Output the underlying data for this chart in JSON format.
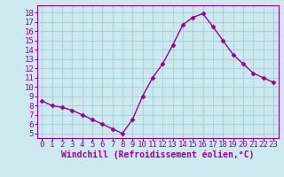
{
  "x": [
    0,
    1,
    2,
    3,
    4,
    5,
    6,
    7,
    8,
    9,
    10,
    11,
    12,
    13,
    14,
    15,
    16,
    17,
    18,
    19,
    20,
    21,
    22,
    23
  ],
  "y": [
    8.5,
    8.0,
    7.8,
    7.5,
    7.0,
    6.5,
    6.0,
    5.5,
    5.0,
    6.5,
    9.0,
    11.0,
    12.5,
    14.5,
    16.7,
    17.5,
    17.9,
    16.5,
    15.0,
    13.5,
    12.5,
    11.5,
    11.0,
    10.5
  ],
  "line_color": "#990099",
  "marker": "D",
  "marker_size": 2.5,
  "bg_color": "#cce9f0",
  "grid_color": "#aad4dd",
  "xlabel": "Windchill (Refroidissement éolien,°C)",
  "xlabel_color": "#990099",
  "tick_color": "#990099",
  "axis_color": "#990099",
  "ylim": [
    4.5,
    18.8
  ],
  "xlim": [
    -0.5,
    23.5
  ],
  "yticks": [
    5,
    6,
    7,
    8,
    9,
    10,
    11,
    12,
    13,
    14,
    15,
    16,
    17,
    18
  ],
  "xticks": [
    0,
    1,
    2,
    3,
    4,
    5,
    6,
    7,
    8,
    9,
    10,
    11,
    12,
    13,
    14,
    15,
    16,
    17,
    18,
    19,
    20,
    21,
    22,
    23
  ],
  "fontsize_axis": 6.5,
  "fontsize_label": 7.0,
  "line_width": 1.0
}
